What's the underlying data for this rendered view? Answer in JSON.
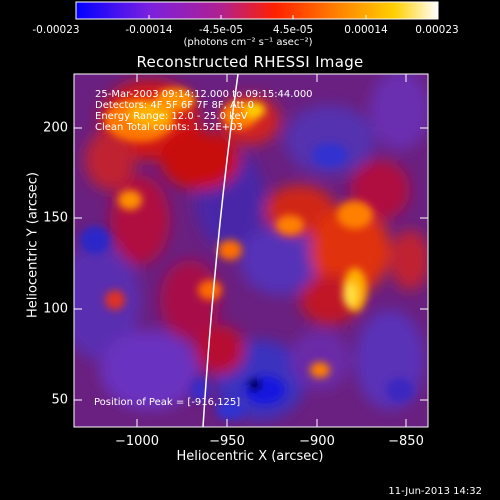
{
  "colorbar": {
    "ticks": [
      "-0.00023",
      "-0.00014",
      "-4.5e-05",
      "4.5e-05",
      "0.00014",
      "0.00023"
    ],
    "units": "(photons cm⁻² s⁻¹ asec⁻²)",
    "colors": [
      "#0000ff",
      "#8a2be2",
      "#c02090",
      "#ff3000",
      "#ff8c00",
      "#ffd000",
      "#ffffff"
    ]
  },
  "title": "Reconstructed RHESSI Image",
  "info": {
    "time": "25-Mar-2003 09:14:12.000 to 09:15:44.000",
    "detectors": "Detectors: 4F 5F 6F 7F 8F, Att 0",
    "energy": "Energy Range: 12.0 - 25.0 keV",
    "clean": "Clean    Total counts: 1.52E+03"
  },
  "peak": "Position of Peak = [-916,125]",
  "axes": {
    "xlabel": "Heliocentric X (arcsec)",
    "ylabel": "Heliocentric Y (arcsec)",
    "xticks": [
      "−1000",
      "−950",
      "−900",
      "−850"
    ],
    "yticks": [
      "200",
      "150",
      "100",
      "50"
    ]
  },
  "footer": "11-Jun-2013 14:32"
}
